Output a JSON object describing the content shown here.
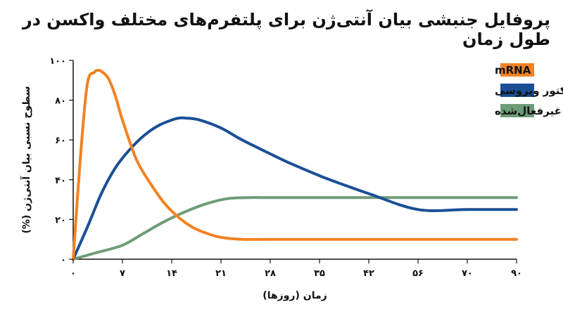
{
  "chart_data": {
    "type": "line",
    "title": "پروفایل جنبشی بیان آنتی‌ژن برای پلتفرم‌های مختلف واکسن در طول زمان",
    "xlabel": "زمان (روزها)",
    "ylabel": "سطوح نسبی بیان آنتی‌ژن (%)",
    "x_tick_labels": [
      "۰",
      "۷",
      "۱۴",
      "۲۱",
      "۲۸",
      "۳۵",
      "۴۲",
      "۵۶",
      "۷۰",
      "۹۰"
    ],
    "y_tick_labels": [
      "۰",
      "۲۰",
      "۴۰",
      "۶۰",
      "۸۰",
      "۱۰۰"
    ],
    "y_ticks": [
      0,
      20,
      40,
      60,
      80,
      100
    ],
    "ylim": [
      0,
      100
    ],
    "grid": false,
    "legend_position": "top-right",
    "series": [
      {
        "name": "mRNA",
        "color": "#F28223",
        "x": [
          0,
          1,
          2,
          3,
          3.5,
          4,
          5,
          6,
          7,
          9,
          11,
          13,
          15,
          17,
          19,
          21,
          24,
          28,
          35,
          42,
          56,
          70,
          90
        ],
        "values": [
          0,
          50,
          88,
          94,
          95,
          94.5,
          91,
          82,
          70,
          50,
          38,
          28,
          21,
          16,
          13,
          11,
          10,
          10,
          10,
          10,
          10,
          10,
          10
        ]
      },
      {
        "name": "وکتور ویروسی",
        "color": "#1A4F96",
        "x": [
          0,
          2,
          4,
          6,
          8,
          10,
          12,
          14,
          15,
          16,
          18,
          21,
          24,
          28,
          31,
          35,
          38,
          42,
          56,
          70,
          90
        ],
        "values": [
          0,
          16,
          33,
          46,
          55,
          62,
          67,
          70,
          71,
          71,
          70,
          66,
          60,
          53,
          48,
          42,
          38,
          33,
          25,
          25,
          25
        ]
      },
      {
        "name": "غیرفعال‌شده",
        "color": "#6E9C78",
        "x": [
          0,
          3,
          7,
          10,
          13,
          16,
          19,
          22,
          25,
          28,
          35,
          42,
          56,
          70,
          90
        ],
        "values": [
          0,
          3,
          7,
          13,
          19,
          24,
          28,
          30.5,
          31,
          31,
          31,
          31,
          31,
          31,
          31
        ]
      }
    ]
  }
}
